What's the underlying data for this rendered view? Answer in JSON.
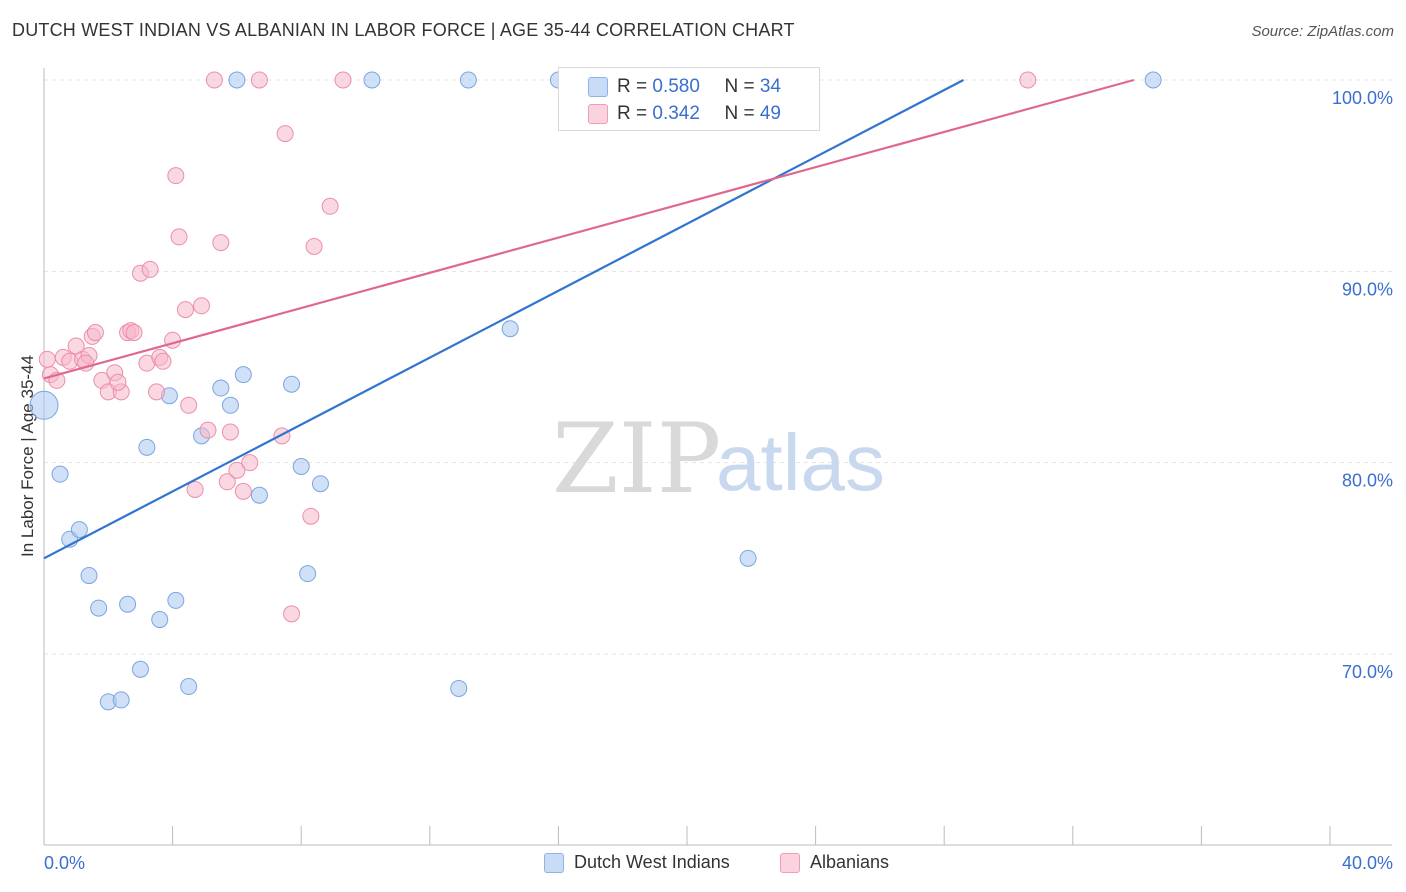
{
  "header": {
    "title": "DUTCH WEST INDIAN VS ALBANIAN IN LABOR FORCE | AGE 35-44 CORRELATION CHART",
    "source": "Source: ZipAtlas.com"
  },
  "watermark": {
    "zip": "ZIP",
    "atlas": "atlas"
  },
  "legend": {
    "rows": [
      {
        "r_label": "R = ",
        "r_value": "0.580",
        "n_label": "N = ",
        "n_value": "34",
        "color": "#a9c6f0"
      },
      {
        "r_label": "R = ",
        "r_value": "0.342",
        "n_label": "N = ",
        "n_value": "49",
        "color": "#f5b8cb"
      }
    ]
  },
  "chart_data": {
    "type": "scatter",
    "title": "DUTCH WEST INDIAN VS ALBANIAN IN LABOR FORCE | AGE 35-44 CORRELATION CHART",
    "xlabel": "",
    "ylabel": "In Labor Force | Age 35-44",
    "xlim": [
      0,
      40
    ],
    "ylim": [
      60.5,
      101
    ],
    "x_tick_labels": [
      "0.0%",
      "40.0%"
    ],
    "y_ticks": [
      {
        "value": 70,
        "label": "70.0%"
      },
      {
        "value": 80,
        "label": "80.0%"
      },
      {
        "value": 90,
        "label": "90.0%"
      },
      {
        "value": 100,
        "label": "100.0%"
      }
    ],
    "grid": true,
    "series": [
      {
        "name": "Dutch West Indians",
        "color": "#a9c6f0",
        "stroke": "#7aa6e0",
        "line_color": "#2f74d0",
        "r": 0.58,
        "n": 34,
        "trend": {
          "x": [
            0.0,
            28.6
          ],
          "y": [
            75.0,
            100.0
          ]
        },
        "points": [
          [
            0.0,
            83.0
          ],
          [
            0.5,
            79.4
          ],
          [
            0.8,
            76.0
          ],
          [
            1.1,
            76.5
          ],
          [
            1.4,
            74.1
          ],
          [
            1.7,
            72.4
          ],
          [
            2.0,
            67.5
          ],
          [
            2.4,
            67.6
          ],
          [
            2.6,
            72.6
          ],
          [
            3.0,
            69.2
          ],
          [
            3.2,
            80.8
          ],
          [
            3.6,
            71.8
          ],
          [
            3.9,
            83.5
          ],
          [
            4.1,
            72.8
          ],
          [
            4.5,
            68.3
          ],
          [
            4.9,
            81.4
          ],
          [
            5.5,
            83.9
          ],
          [
            5.8,
            83.0
          ],
          [
            6.2,
            84.6
          ],
          [
            6.7,
            78.3
          ],
          [
            7.7,
            84.1
          ],
          [
            8.0,
            79.8
          ],
          [
            8.2,
            74.2
          ],
          [
            8.6,
            78.9
          ],
          [
            6.0,
            100.0
          ],
          [
            10.2,
            100.0
          ],
          [
            13.2,
            100.0
          ],
          [
            14.5,
            87.0
          ],
          [
            16.0,
            100.0
          ],
          [
            16.3,
            100.0
          ],
          [
            16.7,
            100.0
          ],
          [
            21.9,
            75.0
          ],
          [
            12.9,
            68.2
          ],
          [
            34.5,
            100.0
          ]
        ]
      },
      {
        "name": "Albanians",
        "color": "#f5b8cb",
        "stroke": "#ec8eaa",
        "line_color": "#e06890",
        "r": 0.342,
        "n": 49,
        "trend": {
          "x": [
            0.0,
            33.9
          ],
          "y": [
            84.4,
            100.0
          ]
        },
        "points": [
          [
            0.2,
            84.6
          ],
          [
            0.4,
            84.3
          ],
          [
            0.6,
            85.5
          ],
          [
            0.8,
            85.3
          ],
          [
            1.0,
            86.1
          ],
          [
            1.2,
            85.4
          ],
          [
            1.4,
            85.6
          ],
          [
            1.5,
            86.6
          ],
          [
            1.6,
            86.8
          ],
          [
            1.8,
            84.3
          ],
          [
            2.0,
            83.7
          ],
          [
            2.2,
            84.7
          ],
          [
            2.4,
            83.7
          ],
          [
            2.6,
            86.8
          ],
          [
            2.7,
            86.9
          ],
          [
            2.8,
            86.8
          ],
          [
            3.0,
            89.9
          ],
          [
            3.2,
            85.2
          ],
          [
            3.3,
            90.1
          ],
          [
            3.5,
            83.7
          ],
          [
            3.6,
            85.5
          ],
          [
            3.7,
            85.3
          ],
          [
            4.0,
            86.4
          ],
          [
            4.1,
            95.0
          ],
          [
            4.2,
            91.8
          ],
          [
            4.4,
            88.0
          ],
          [
            4.5,
            83.0
          ],
          [
            4.7,
            78.6
          ],
          [
            4.9,
            88.2
          ],
          [
            5.1,
            81.7
          ],
          [
            5.3,
            100.0
          ],
          [
            5.5,
            91.5
          ],
          [
            5.7,
            79.0
          ],
          [
            5.8,
            81.6
          ],
          [
            6.0,
            79.6
          ],
          [
            6.2,
            78.5
          ],
          [
            6.4,
            80.0
          ],
          [
            6.7,
            100.0
          ],
          [
            7.4,
            81.4
          ],
          [
            7.5,
            97.2
          ],
          [
            7.7,
            72.1
          ],
          [
            8.3,
            77.2
          ],
          [
            8.4,
            91.3
          ],
          [
            8.9,
            93.4
          ],
          [
            9.3,
            100.0
          ],
          [
            30.6,
            100.0
          ],
          [
            0.1,
            85.4
          ],
          [
            1.3,
            85.2
          ],
          [
            2.3,
            84.2
          ]
        ]
      }
    ]
  },
  "bottom_legend": {
    "items": [
      "Dutch West Indians",
      "Albanians"
    ]
  }
}
